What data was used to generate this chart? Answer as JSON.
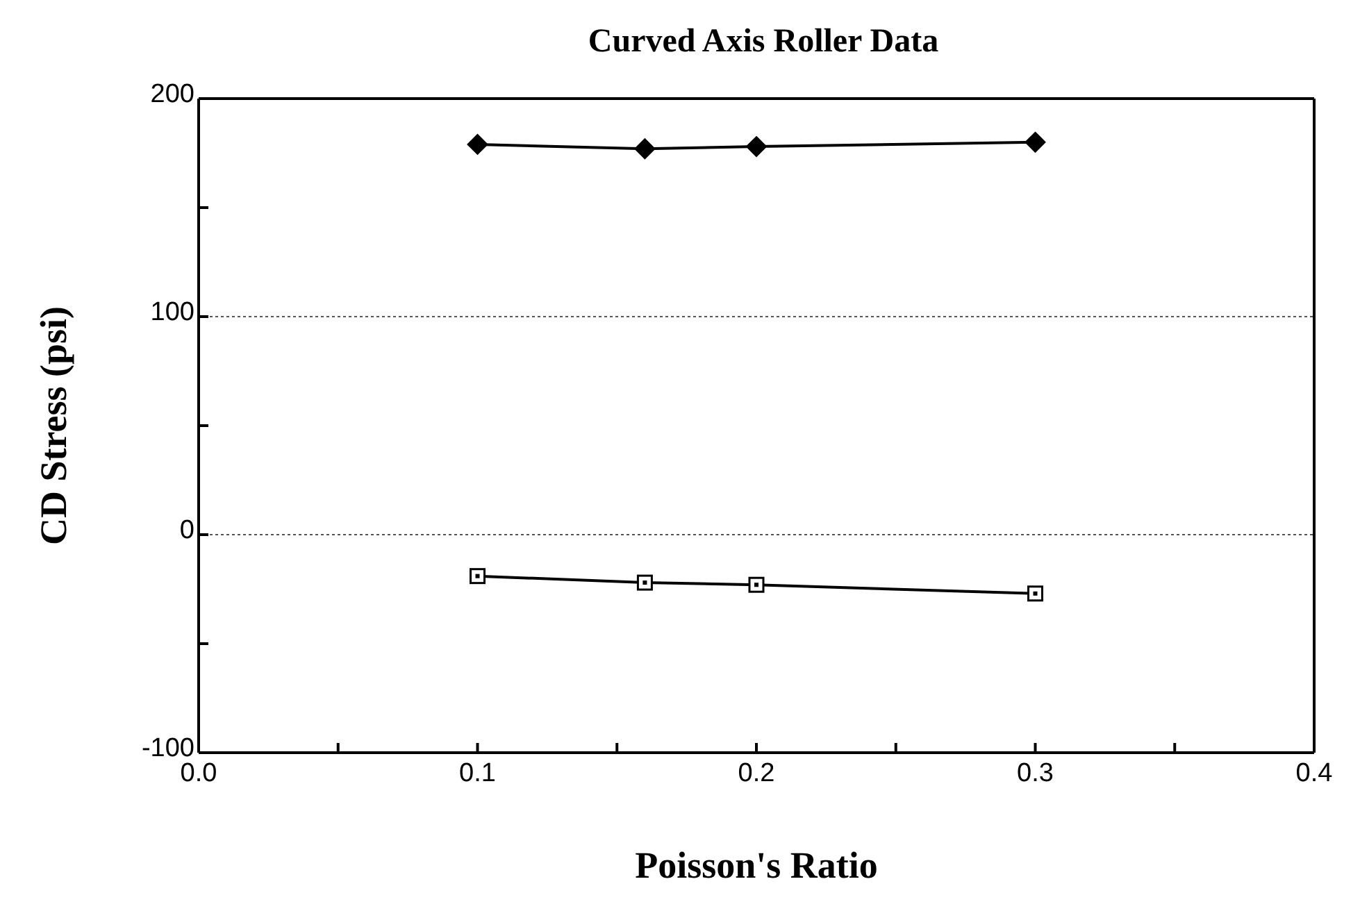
{
  "chart_data": {
    "type": "line",
    "title": "Curved Axis Roller Data",
    "xlabel": "Poisson's Ratio",
    "ylabel": "CD  Stress  (psi)",
    "x": [
      0.1,
      0.16,
      0.2,
      0.3
    ],
    "series": [
      {
        "color": "#000000",
        "marker": "diamond",
        "values": [
          179,
          177,
          178,
          180
        ]
      },
      {
        "color": "#000000",
        "marker": "square",
        "values": [
          -19,
          -22,
          -23,
          -27
        ]
      }
    ],
    "xlim": [
      0,
      0.4
    ],
    "xticks": [
      {
        "value": 0,
        "label": "0.0"
      },
      {
        "value": 0.05,
        "label": null
      },
      0.1,
      {
        "value": 0.15,
        "label": null
      },
      0.2,
      {
        "value": 0.25,
        "label": null
      },
      0.3,
      {
        "value": 0.35,
        "label": null
      },
      0.4
    ],
    "ylim": [
      -100,
      200
    ],
    "yticks": [
      -100,
      {
        "value": -50,
        "label": null
      },
      0,
      {
        "value": 50,
        "label": null
      },
      100,
      {
        "value": 150,
        "label": null
      },
      200
    ],
    "grid": "y",
    "legend": false
  }
}
